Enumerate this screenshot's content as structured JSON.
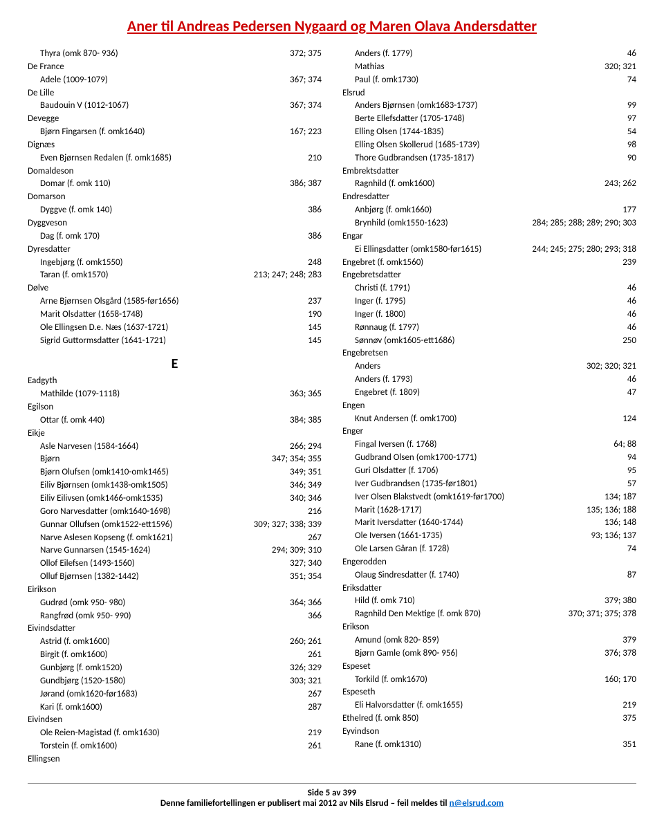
{
  "title": "Aner til Andreas Pedersen Nygaard og Maren Olava Andersdatter",
  "footer": {
    "line1": "Side 5 av 399",
    "line2_a": "Denne familiefortellingen er publisert mai 2012 av Nils Elsrud – feil meldes til ",
    "line2_b": "n@elsrud.com"
  },
  "left": [
    {
      "t": "r",
      "i": 1,
      "l": "Thyra (omk 870- 936)",
      "r": "372; 375"
    },
    {
      "t": "h",
      "l": "De France"
    },
    {
      "t": "r",
      "i": 1,
      "l": "Adele (1009-1079)",
      "r": "367; 374"
    },
    {
      "t": "h",
      "l": "De Lille"
    },
    {
      "t": "r",
      "i": 1,
      "l": "Baudouin V (1012-1067)",
      "r": "367; 374"
    },
    {
      "t": "h",
      "l": "Devegge"
    },
    {
      "t": "r",
      "i": 1,
      "l": "Bjørn Fingarsen (f. omk1640)",
      "r": "167; 223"
    },
    {
      "t": "h",
      "l": "Dignæs"
    },
    {
      "t": "r",
      "i": 1,
      "l": "Even Bjørnsen Redalen (f. omk1685)",
      "r": "210"
    },
    {
      "t": "h",
      "l": "Domaldeson"
    },
    {
      "t": "r",
      "i": 1,
      "l": "Domar (f. omk 110)",
      "r": "386; 387"
    },
    {
      "t": "h",
      "l": "Domarson"
    },
    {
      "t": "r",
      "i": 1,
      "l": "Dyggve (f. omk 140)",
      "r": "386"
    },
    {
      "t": "h",
      "l": "Dyggveson"
    },
    {
      "t": "r",
      "i": 1,
      "l": "Dag (f. omk 170)",
      "r": "386"
    },
    {
      "t": "h",
      "l": "Dyresdatter"
    },
    {
      "t": "r",
      "i": 1,
      "l": "Ingebjørg (f. omk1550)",
      "r": "248"
    },
    {
      "t": "r",
      "i": 1,
      "l": "Taran (f. omk1570)",
      "r": "213; 247; 248; 283"
    },
    {
      "t": "h",
      "l": "Dølve"
    },
    {
      "t": "r",
      "i": 1,
      "l": "Arne Bjørnsen Olsgård (1585-før1656)",
      "r": "237"
    },
    {
      "t": "r",
      "i": 1,
      "l": "Marit Olsdatter (1658-1748)",
      "r": "190"
    },
    {
      "t": "r",
      "i": 1,
      "l": "Ole Ellingsen D.e. Næs (1637-1721)",
      "r": "145"
    },
    {
      "t": "r",
      "i": 1,
      "l": "Sigrid Guttormsdatter (1641-1721)",
      "r": "145"
    },
    {
      "t": "E"
    },
    {
      "t": "h",
      "l": "Eadgyth"
    },
    {
      "t": "r",
      "i": 1,
      "l": "Mathilde (1079-1118)",
      "r": "363; 365"
    },
    {
      "t": "h",
      "l": "Egilson"
    },
    {
      "t": "r",
      "i": 1,
      "l": "Ottar (f. omk 440)",
      "r": "384; 385"
    },
    {
      "t": "h",
      "l": "Eikje"
    },
    {
      "t": "r",
      "i": 1,
      "l": "Asle Narvesen (1584-1664)",
      "r": "266; 294"
    },
    {
      "t": "r",
      "i": 1,
      "l": "Bjørn",
      "r": "347; 354; 355"
    },
    {
      "t": "r",
      "i": 1,
      "l": "Bjørn Olufsen (omk1410-omk1465)",
      "r": "349; 351"
    },
    {
      "t": "r",
      "i": 1,
      "l": "Eiliv Bjørnsen (omk1438-omk1505)",
      "r": "346; 349"
    },
    {
      "t": "r",
      "i": 1,
      "l": "Eiliv Eilivsen (omk1466-omk1535)",
      "r": "340; 346"
    },
    {
      "t": "r",
      "i": 1,
      "l": "Goro Narvesdatter (omk1640-1698)",
      "r": "216"
    },
    {
      "t": "r",
      "i": 1,
      "l": "Gunnar Ollufsen (omk1522-ett1596)",
      "r": "309; 327; 338; 339"
    },
    {
      "t": "r",
      "i": 1,
      "l": "Narve Aslesen Kopseng (f. omk1621)",
      "r": "267"
    },
    {
      "t": "r",
      "i": 1,
      "l": "Narve Gunnarsen (1545-1624)",
      "r": "294; 309; 310"
    },
    {
      "t": "r",
      "i": 1,
      "l": "Ollof Eilefsen (1493-1560)",
      "r": "327; 340"
    },
    {
      "t": "r",
      "i": 1,
      "l": "Olluf Bjørnsen (1382-1442)",
      "r": "351; 354"
    },
    {
      "t": "h",
      "l": "Eirikson"
    },
    {
      "t": "r",
      "i": 1,
      "l": "Gudrød (omk 950- 980)",
      "r": "364; 366"
    },
    {
      "t": "r",
      "i": 1,
      "l": "Rangfrød (omk 950- 990)",
      "r": "366"
    },
    {
      "t": "h",
      "l": "Eivindsdatter"
    },
    {
      "t": "r",
      "i": 1,
      "l": "Astrid (f. omk1600)",
      "r": "260; 261"
    },
    {
      "t": "r",
      "i": 1,
      "l": "Birgit (f. omk1600)",
      "r": "261"
    },
    {
      "t": "r",
      "i": 1,
      "l": "Gunbjørg (f. omk1520)",
      "r": "326; 329"
    },
    {
      "t": "r",
      "i": 1,
      "l": "Gundbjørg (1520-1580)",
      "r": "303; 321"
    },
    {
      "t": "r",
      "i": 1,
      "l": "Jørand (omk1620-før1683)",
      "r": "267"
    },
    {
      "t": "r",
      "i": 1,
      "l": "Kari (f. omk1600)",
      "r": "287"
    },
    {
      "t": "h",
      "l": "Eivindsen"
    },
    {
      "t": "r",
      "i": 1,
      "l": "Ole Reien-Magistad (f. omk1630)",
      "r": "219"
    },
    {
      "t": "r",
      "i": 1,
      "l": "Torstein (f. omk1600)",
      "r": "261"
    },
    {
      "t": "h",
      "l": "Ellingsen"
    }
  ],
  "right": [
    {
      "t": "r",
      "i": 1,
      "l": "Anders (f. 1779)",
      "r": "46"
    },
    {
      "t": "r",
      "i": 1,
      "l": "Mathias",
      "r": "320; 321"
    },
    {
      "t": "r",
      "i": 1,
      "l": "Paul (f. omk1730)",
      "r": "74"
    },
    {
      "t": "h",
      "l": "Elsrud"
    },
    {
      "t": "r",
      "i": 1,
      "l": "Anders Bjørnsen (omk1683-1737)",
      "r": "99"
    },
    {
      "t": "r",
      "i": 1,
      "l": "Berte Ellefsdatter (1705-1748)",
      "r": "97"
    },
    {
      "t": "r",
      "i": 1,
      "l": "Elling Olsen (1744-1835)",
      "r": "54"
    },
    {
      "t": "r",
      "i": 1,
      "l": "Elling Olsen Skollerud (1685-1739)",
      "r": "98"
    },
    {
      "t": "r",
      "i": 1,
      "l": "Thore Gudbrandsen (1735-1817)",
      "r": "90"
    },
    {
      "t": "h",
      "l": "Embrektsdatter"
    },
    {
      "t": "r",
      "i": 1,
      "l": "Ragnhild (f. omk1600)",
      "r": "243; 262"
    },
    {
      "t": "h",
      "l": "Endresdatter"
    },
    {
      "t": "r",
      "i": 1,
      "l": "Anbjørg (f. omk1660)",
      "r": "177"
    },
    {
      "t": "r",
      "i": 1,
      "l": "Brynhild (omk1550-1623)",
      "r": "284; 285; 288; 289; 290; 303"
    },
    {
      "t": "h",
      "l": "Engar"
    },
    {
      "t": "r",
      "i": 1,
      "l": "Ei Ellingsdatter (omk1580-før1615)",
      "r": "244; 245; 275; 280; 293; 318"
    },
    {
      "t": "r",
      "i": 0,
      "l": "Engebret (f. omk1560)",
      "r": "239"
    },
    {
      "t": "h",
      "l": "Engebretsdatter"
    },
    {
      "t": "r",
      "i": 1,
      "l": "Christi (f. 1791)",
      "r": "46"
    },
    {
      "t": "r",
      "i": 1,
      "l": "Inger (f. 1795)",
      "r": "46"
    },
    {
      "t": "r",
      "i": 1,
      "l": "Inger (f. 1800)",
      "r": "46"
    },
    {
      "t": "r",
      "i": 1,
      "l": "Rønnaug (f. 1797)",
      "r": "46"
    },
    {
      "t": "r",
      "i": 1,
      "l": "Sønnøv (omk1605-ett1686)",
      "r": "250"
    },
    {
      "t": "h",
      "l": "Engebretsen"
    },
    {
      "t": "r",
      "i": 1,
      "l": "Anders",
      "r": "302; 320; 321"
    },
    {
      "t": "r",
      "i": 1,
      "l": "Anders (f. 1793)",
      "r": "46"
    },
    {
      "t": "r",
      "i": 1,
      "l": "Engebret (f. 1809)",
      "r": "47"
    },
    {
      "t": "h",
      "l": "Engen"
    },
    {
      "t": "r",
      "i": 1,
      "l": "Knut Andersen (f. omk1700)",
      "r": "124"
    },
    {
      "t": "h",
      "l": "Enger"
    },
    {
      "t": "r",
      "i": 1,
      "l": "Fingal    Iversen (f. 1768)",
      "r": "64; 88"
    },
    {
      "t": "r",
      "i": 1,
      "l": "Gudbrand Olsen (omk1700-1771)",
      "r": "94"
    },
    {
      "t": "r",
      "i": 1,
      "l": "Guri Olsdatter (f. 1706)",
      "r": "95"
    },
    {
      "t": "r",
      "i": 1,
      "l": "Iver Gudbrandsen (1735-før1801)",
      "r": "57"
    },
    {
      "t": "r",
      "i": 1,
      "l": "Iver Olsen Blakstvedt (omk1619-før1700)",
      "r": "134; 187"
    },
    {
      "t": "r",
      "i": 1,
      "l": "Marit (1628-1717)",
      "r": "135; 136; 188"
    },
    {
      "t": "r",
      "i": 1,
      "l": "Marit Iversdatter (1640-1744)",
      "r": "136; 148"
    },
    {
      "t": "r",
      "i": 1,
      "l": "Ole Iversen (1661-1735)",
      "r": "93; 136; 137"
    },
    {
      "t": "r",
      "i": 1,
      "l": "Ole Larsen Gåran (f. 1728)",
      "r": "74"
    },
    {
      "t": "h",
      "l": "Engerodden"
    },
    {
      "t": "r",
      "i": 1,
      "l": "Olaug Sindresdatter (f. 1740)",
      "r": "87"
    },
    {
      "t": "h",
      "l": "Eriksdatter"
    },
    {
      "t": "r",
      "i": 1,
      "l": "Hild (f. omk 710)",
      "r": "379; 380"
    },
    {
      "t": "r",
      "i": 1,
      "l": "Ragnhild Den Mektige (f. omk 870)",
      "r": "370; 371; 375; 378"
    },
    {
      "t": "h",
      "l": "Erikson"
    },
    {
      "t": "r",
      "i": 1,
      "l": "Amund (omk 820- 859)",
      "r": "379"
    },
    {
      "t": "r",
      "i": 1,
      "l": "Bjørn Gamle (omk 890- 956)",
      "r": "376; 378"
    },
    {
      "t": "h",
      "l": "Espeset"
    },
    {
      "t": "r",
      "i": 1,
      "l": "Torkild (f. omk1670)",
      "r": "160; 170"
    },
    {
      "t": "h",
      "l": "Espeseth"
    },
    {
      "t": "r",
      "i": 1,
      "l": "Eli Halvorsdatter (f. omk1655)",
      "r": "219"
    },
    {
      "t": "r",
      "i": 0,
      "l": "Ethelred (f. omk 850)",
      "r": "375"
    },
    {
      "t": "h",
      "l": "Eyvindson"
    },
    {
      "t": "r",
      "i": 1,
      "l": "Rane (f. omk1310)",
      "r": "351"
    }
  ]
}
